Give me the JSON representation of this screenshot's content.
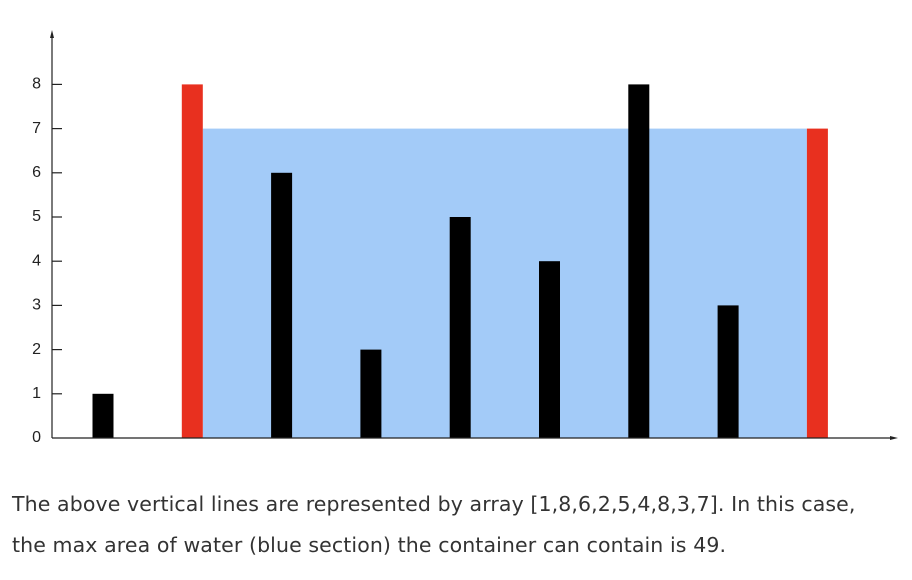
{
  "chart_data": {
    "type": "bar",
    "title": "",
    "xlabel": "",
    "ylabel": "",
    "heights": [
      1,
      8,
      6,
      2,
      5,
      4,
      8,
      3,
      7
    ],
    "highlight_indices": [
      1,
      8
    ],
    "water_level": 7,
    "yticks": [
      "0",
      "1",
      "2",
      "3",
      "4",
      "5",
      "6",
      "7",
      "8"
    ],
    "ylim": [
      0,
      8
    ],
    "colors": {
      "bar": "#000000",
      "highlight": "#e8301f",
      "water": "#a3cbf8",
      "axis": "#222222"
    }
  },
  "caption": {
    "line1": "The above vertical lines are represented by array [1,8,6,2,5,4,8,3,7]. In this case,",
    "line2": "the max area of water (blue section) the container can contain is 49."
  }
}
